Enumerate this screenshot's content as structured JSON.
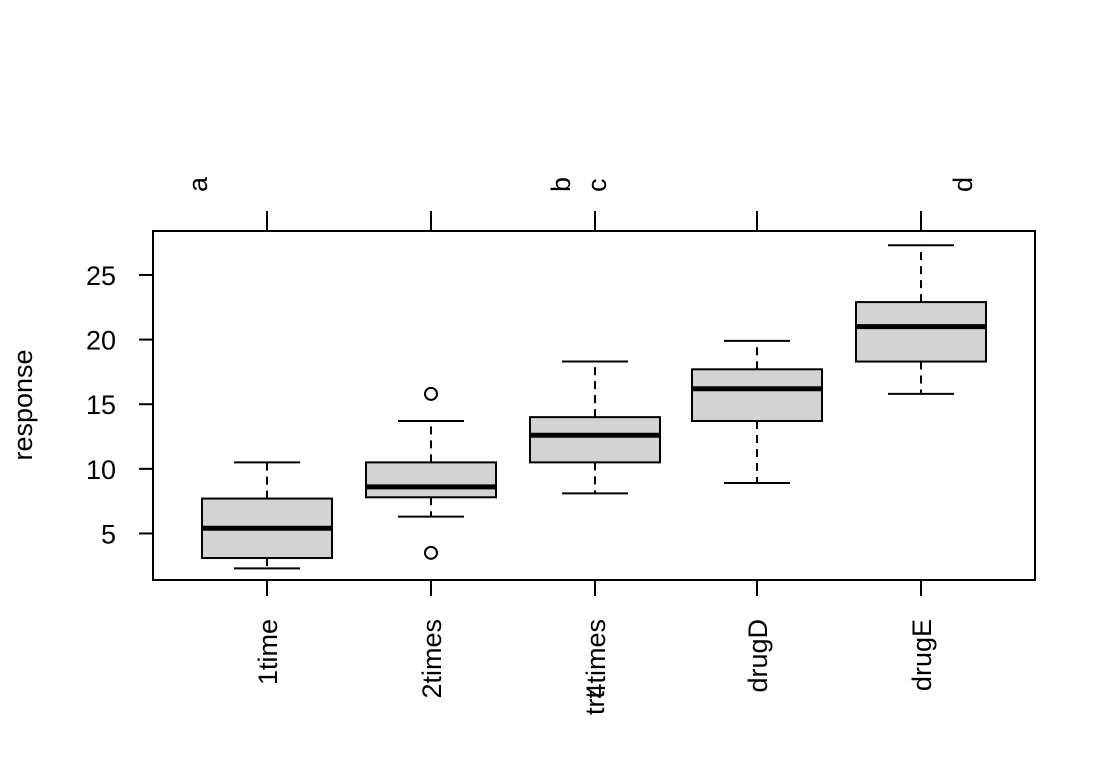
{
  "chart_data": {
    "type": "boxplot",
    "title": "",
    "xlabel": "trt",
    "ylabel": "response",
    "ylim": [
      1.4,
      28.4
    ],
    "yticks": [
      5,
      10,
      15,
      20,
      25
    ],
    "categories": [
      "1time",
      "2times",
      "4times",
      "drugD",
      "drugE"
    ],
    "boxes": [
      {
        "name": "1time",
        "whisker_low": 2.3,
        "q1": 3.1,
        "median": 5.4,
        "q3": 7.7,
        "whisker_high": 10.5,
        "outliers": []
      },
      {
        "name": "2times",
        "whisker_low": 6.3,
        "q1": 7.8,
        "median": 8.6,
        "q3": 10.5,
        "whisker_high": 13.7,
        "outliers": [
          3.5,
          15.8
        ]
      },
      {
        "name": "4times",
        "whisker_low": 8.1,
        "q1": 10.5,
        "median": 12.6,
        "q3": 14.0,
        "whisker_high": 18.3,
        "outliers": []
      },
      {
        "name": "drugD",
        "whisker_low": 8.9,
        "q1": 13.7,
        "median": 16.2,
        "q3": 17.7,
        "whisker_high": 19.9,
        "outliers": []
      },
      {
        "name": "drugE",
        "whisker_low": 15.8,
        "q1": 18.3,
        "median": 21.0,
        "q3": 22.9,
        "whisker_high": 27.3,
        "outliers": []
      }
    ],
    "group_letters": [
      "a",
      "b",
      "c",
      "d"
    ],
    "colors": {
      "box_fill": "#d3d3d3",
      "stroke": "#000000"
    }
  }
}
